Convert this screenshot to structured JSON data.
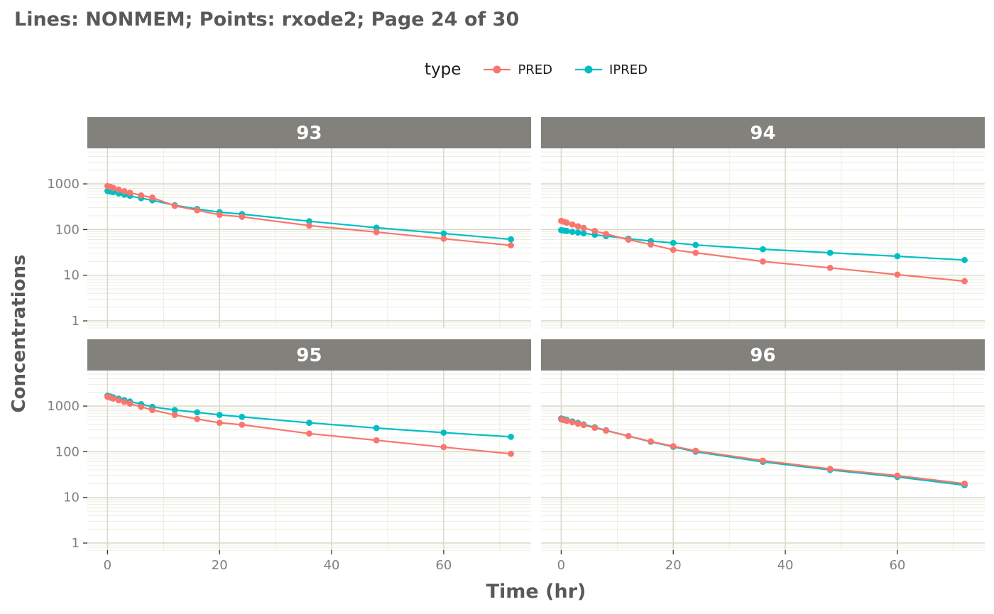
{
  "title": "Lines: NONMEM; Points: rxode2; Page 24 of 30",
  "legend": {
    "title": "type",
    "items": [
      {
        "label": "PRED",
        "color": "#F8766D"
      },
      {
        "label": "IPRED",
        "color": "#00BFC4"
      }
    ]
  },
  "axes": {
    "x_title": "Time (hr)",
    "y_title": "Concentrations",
    "x_ticks": [
      0,
      20,
      40,
      60
    ],
    "x_minor": [
      10,
      30,
      50,
      70
    ],
    "y_ticks": [
      1,
      10,
      100,
      1000
    ],
    "x_range": [
      -3.6,
      75.6
    ],
    "y_range": [
      0.7,
      6000
    ],
    "y_scale": "log10"
  },
  "theme": {
    "strip_bg": "#83817b",
    "strip_text": "#ffffff",
    "panel_bg": "#ffffff",
    "grid_major": "#d8d8c6",
    "grid_minor": "#e9e9dc",
    "tick_label": "#7f7f7f",
    "axis_tick": "#333333"
  },
  "chart_data": {
    "type": "line",
    "title": "Lines: NONMEM; Points: rxode2; Page 24 of 30",
    "xlabel": "Time (hr)",
    "ylabel": "Concentrations",
    "y_scale": "log10",
    "legend_position": "top",
    "grid": true,
    "x": [
      0,
      0.5,
      1,
      2,
      3,
      4,
      6,
      8,
      12,
      16,
      20,
      24,
      36,
      48,
      60,
      72
    ],
    "facets": [
      {
        "id": "93",
        "series": [
          {
            "name": "PRED",
            "color": "#F8766D",
            "values": [
              900,
              860,
              820,
              750,
              690,
              640,
              560,
              500,
              330,
              265,
              210,
              190,
              122,
              88,
              63,
              45
            ]
          },
          {
            "name": "IPRED",
            "color": "#00BFC4",
            "values": [
              700,
              678,
              657,
              617,
              580,
              547,
              487,
              437,
              340,
              282,
              240,
              218,
              152,
              110,
              82,
              61
            ]
          }
        ]
      },
      {
        "id": "94",
        "series": [
          {
            "name": "PRED",
            "color": "#F8766D",
            "values": [
              155,
              148,
              141,
              129,
              118,
              109,
              93,
              80,
              60,
              47,
              36,
              31,
              20,
              14.5,
              10.3,
              7.4
            ]
          },
          {
            "name": "IPRED",
            "color": "#00BFC4",
            "values": [
              97,
              95,
              93,
              89,
              86,
              83,
              77,
              72,
              63,
              56,
              51,
              46,
              37,
              31,
              26,
              21.5
            ]
          }
        ]
      },
      {
        "id": "95",
        "series": [
          {
            "name": "PRED",
            "color": "#F8766D",
            "values": [
              1600,
              1530,
              1460,
              1340,
              1230,
              1130,
              960,
              820,
              640,
              520,
              430,
              390,
              250,
              178,
              126,
              90
            ]
          },
          {
            "name": "IPRED",
            "color": "#00BFC4",
            "values": [
              1680,
              1620,
              1560,
              1450,
              1350,
              1260,
              1100,
              960,
              820,
              730,
              640,
              580,
              430,
              330,
              262,
              212
            ]
          }
        ]
      },
      {
        "id": "96",
        "series": [
          {
            "name": "PRED",
            "color": "#F8766D",
            "values": [
              510,
              492,
              474,
              441,
              411,
              383,
              333,
              290,
              220,
              168,
              132,
              105,
              64,
              42,
              30,
              20
            ]
          },
          {
            "name": "IPRED",
            "color": "#00BFC4",
            "values": [
              535,
              515,
              496,
              460,
              427,
              396,
              342,
              295,
              220,
              165,
              128,
              100,
              60,
              40,
              28,
              18.5
            ]
          }
        ]
      }
    ]
  }
}
